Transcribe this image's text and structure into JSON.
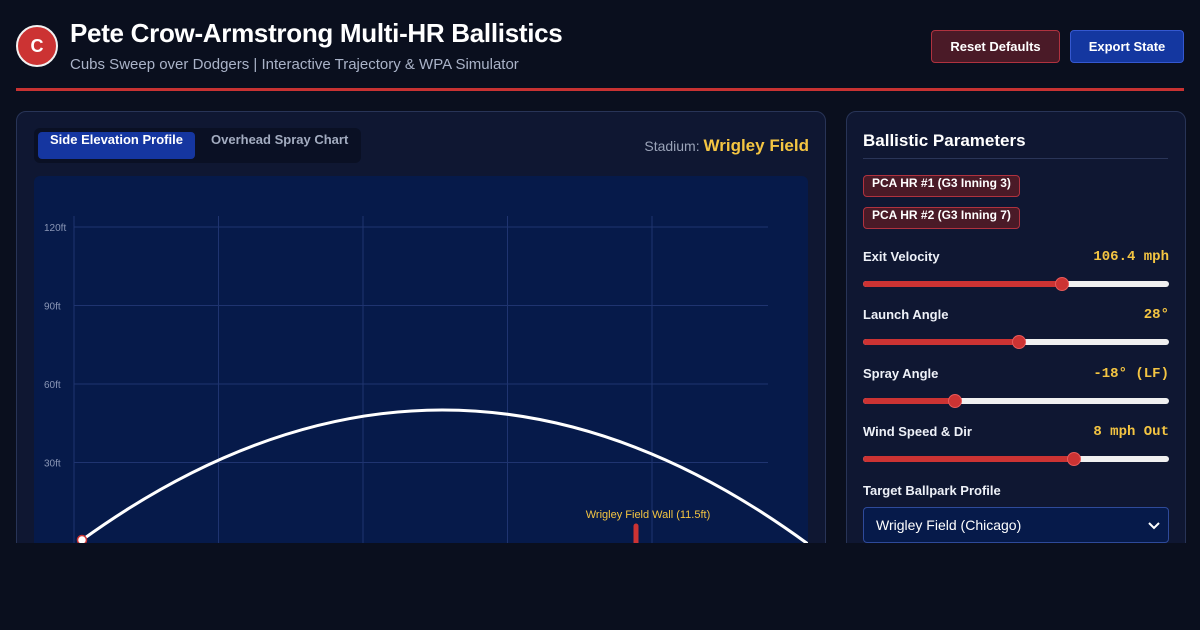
{
  "header": {
    "logo_letter": "C",
    "title": "Pete Crow-Armstrong Multi-HR Ballistics",
    "subtitle": "Cubs Sweep over Dodgers | Interactive Trajectory & WPA Simulator",
    "reset_label": "Reset Defaults",
    "export_label": "Export State"
  },
  "viewer": {
    "tabs": [
      {
        "label": "Side Elevation Profile",
        "active": true
      },
      {
        "label": "Overhead Spray Chart",
        "active": false
      }
    ],
    "stadium_label": "Stadium:",
    "stadium_name": "Wrigley Field"
  },
  "chart_data": {
    "type": "line",
    "ylabel_ticks": [
      "30ft",
      "60ft",
      "90ft",
      "120ft"
    ],
    "y_ticks": [
      30,
      60,
      90,
      120
    ],
    "ylim": [
      0,
      132
    ],
    "wall_label": "Wrigley Field Wall (11.5ft)",
    "wall_height_ft": 11.5,
    "grid": true,
    "colors": {
      "trajectory": "#ffffff",
      "wall": "#cc3333",
      "wall_label": "#f4c542",
      "grid": "#1f3470"
    }
  },
  "params": {
    "title": "Ballistic Parameters",
    "presets": [
      "PCA HR #1 (G3 Inning 3)",
      "PCA HR #2 (G3 Inning 7)"
    ],
    "sliders": [
      {
        "label": "Exit Velocity",
        "value": "106.4 mph",
        "level": 0.65
      },
      {
        "label": "Launch Angle",
        "value": "28°",
        "level": 0.51
      },
      {
        "label": "Spray Angle",
        "value": "-18° (LF)",
        "level": 0.3
      },
      {
        "label": "Wind Speed & Dir",
        "value": "8 mph Out",
        "level": 0.69
      }
    ],
    "ballpark_label": "Target Ballpark Profile",
    "ballpark_selected": "Wrigley Field (Chicago)"
  },
  "colors": {
    "accent": "#cc3333",
    "primary": "#1536a0",
    "highlight": "#f4c542",
    "background": "#0a0f1e"
  }
}
